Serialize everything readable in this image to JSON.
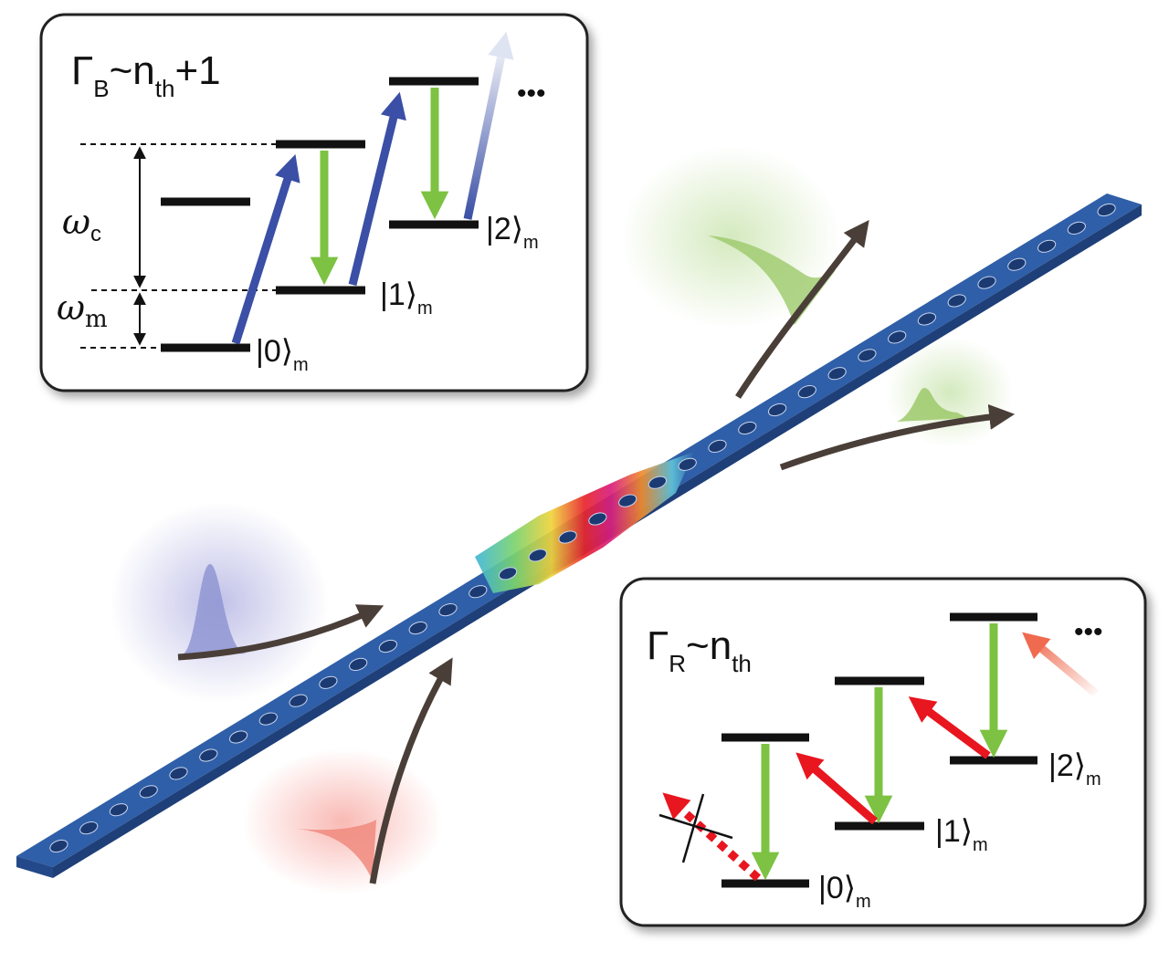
{
  "top_panel": {
    "rate_main": "Γ",
    "rate_sub": "B",
    "rate_mid": "~n",
    "rate_mid_sub": "th",
    "rate_tail": "+1",
    "omega_c": "ω",
    "omega_c_sub": "c",
    "omega_m": "ω",
    "omega_m_sub": "m",
    "ket0": "|0⟩",
    "ket1": "|1⟩",
    "ket2": "|2⟩",
    "ket_sub": "m",
    "ellipsis": "•••"
  },
  "bottom_panel": {
    "rate_main": "Γ",
    "rate_sub": "R",
    "rate_mid": "~n",
    "rate_mid_sub": "th",
    "ket0": "|0⟩",
    "ket1": "|1⟩",
    "ket2": "|2⟩",
    "ket_sub": "m",
    "ellipsis": "•••"
  },
  "colors": {
    "blue_sideband": "#3a4fa5",
    "red_sideband": "#e8161f",
    "green_emission": "#7dc242",
    "waveguide_blue": "#2f5fa8",
    "arrow_brown": "#4a3f38"
  }
}
